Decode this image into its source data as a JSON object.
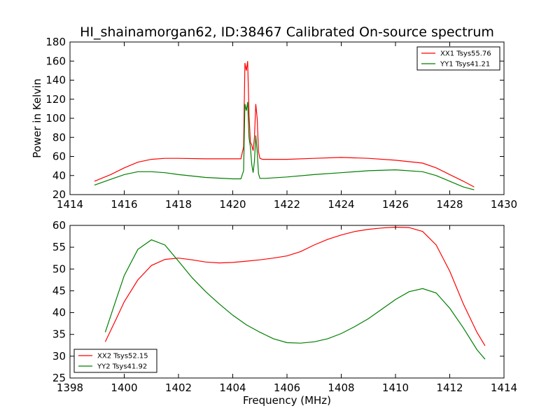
{
  "title": "HI_shainamorgan62, ID:38467 Calibrated On-source spectrum",
  "colors": {
    "red": "#ff0000",
    "green": "#007f00"
  },
  "chart_data": [
    {
      "type": "line",
      "ylabel": "Power in Kelvin",
      "xlabel": "",
      "xlim": [
        1414,
        1430
      ],
      "ylim": [
        20,
        180
      ],
      "xticks": [
        1414,
        1416,
        1418,
        1420,
        1422,
        1424,
        1426,
        1428,
        1430
      ],
      "yticks": [
        20,
        40,
        60,
        80,
        100,
        120,
        140,
        160,
        180
      ],
      "grid": false,
      "legend_position": "top-right",
      "series": [
        {
          "name": "XX1 Tsys55.76",
          "color": "#ff0000",
          "x": [
            1414.9,
            1415.5,
            1416.0,
            1416.5,
            1417.0,
            1417.5,
            1418.0,
            1419.0,
            1420.0,
            1420.3,
            1420.4,
            1420.45,
            1420.5,
            1420.55,
            1420.6,
            1420.65,
            1420.7,
            1420.75,
            1420.8,
            1420.85,
            1420.9,
            1420.95,
            1421.0,
            1421.1,
            1422.0,
            1423.0,
            1424.0,
            1425.0,
            1426.0,
            1427.0,
            1427.5,
            1428.0,
            1428.5,
            1428.9
          ],
          "y": [
            34,
            41,
            48,
            54,
            57,
            58,
            58,
            57.5,
            57.5,
            57.5,
            70,
            158,
            150,
            160,
            105,
            75,
            72,
            66,
            80,
            115,
            100,
            65,
            58,
            57,
            57,
            58,
            59,
            58,
            56,
            53,
            48,
            41,
            34,
            28
          ]
        },
        {
          "name": "YY1 Tsys41.21",
          "color": "#007f00",
          "x": [
            1414.9,
            1415.5,
            1416.0,
            1416.5,
            1417.0,
            1417.5,
            1418.0,
            1419.0,
            1420.0,
            1420.3,
            1420.4,
            1420.45,
            1420.5,
            1420.55,
            1420.6,
            1420.65,
            1420.7,
            1420.75,
            1420.8,
            1420.85,
            1420.9,
            1420.95,
            1421.0,
            1421.2,
            1422.0,
            1423.0,
            1424.0,
            1425.0,
            1426.0,
            1427.0,
            1427.5,
            1428.0,
            1428.5,
            1428.9
          ],
          "y": [
            30,
            36,
            41,
            44,
            44,
            43,
            41,
            38,
            36.5,
            36.5,
            45,
            115,
            108,
            117,
            80,
            70,
            52,
            43,
            55,
            82,
            65,
            42,
            37,
            37,
            38.5,
            41,
            43,
            45,
            46,
            44,
            40,
            34,
            28,
            25
          ]
        }
      ]
    },
    {
      "type": "line",
      "ylabel": "",
      "xlabel": "Frequency (MHz)",
      "xlim": [
        1398,
        1414
      ],
      "ylim": [
        25,
        60
      ],
      "xticks": [
        1398,
        1400,
        1402,
        1404,
        1406,
        1408,
        1410,
        1412,
        1414
      ],
      "yticks": [
        25,
        30,
        35,
        40,
        45,
        50,
        55,
        60
      ],
      "grid": false,
      "legend_position": "bottom-left",
      "series": [
        {
          "name": "XX2 Tsys52.15",
          "color": "#ff0000",
          "x": [
            1399.3,
            1399.7,
            1400.0,
            1400.5,
            1401.0,
            1401.5,
            1402.0,
            1402.5,
            1403.0,
            1403.5,
            1404.0,
            1404.5,
            1405.0,
            1405.5,
            1406.0,
            1406.5,
            1407.0,
            1407.5,
            1408.0,
            1408.5,
            1409.0,
            1409.5,
            1410.0,
            1410.5,
            1411.0,
            1411.5,
            1412.0,
            1412.5,
            1413.0,
            1413.3
          ],
          "y": [
            33.3,
            38.5,
            42.5,
            47.5,
            50.8,
            52.2,
            52.5,
            52.1,
            51.6,
            51.4,
            51.5,
            51.8,
            52.1,
            52.5,
            53.0,
            54.0,
            55.5,
            56.8,
            57.8,
            58.6,
            59.1,
            59.4,
            59.6,
            59.5,
            58.6,
            55.5,
            49.5,
            42.0,
            35.5,
            32.4
          ]
        },
        {
          "name": "YY2 Tsys41.92",
          "color": "#007f00",
          "x": [
            1399.3,
            1399.7,
            1400.0,
            1400.5,
            1401.0,
            1401.5,
            1402.0,
            1402.5,
            1403.0,
            1403.5,
            1404.0,
            1404.5,
            1405.0,
            1405.5,
            1406.0,
            1406.5,
            1407.0,
            1407.5,
            1408.0,
            1408.5,
            1409.0,
            1409.5,
            1410.0,
            1410.5,
            1411.0,
            1411.5,
            1412.0,
            1412.5,
            1413.0,
            1413.3
          ],
          "y": [
            35.5,
            43.0,
            48.5,
            54.5,
            56.7,
            55.5,
            51.8,
            48.0,
            44.8,
            42.0,
            39.4,
            37.2,
            35.5,
            34.0,
            33.1,
            33.0,
            33.3,
            34.0,
            35.2,
            36.8,
            38.6,
            40.8,
            43.0,
            44.8,
            45.5,
            44.5,
            41.0,
            36.5,
            31.5,
            29.3
          ]
        }
      ]
    }
  ]
}
